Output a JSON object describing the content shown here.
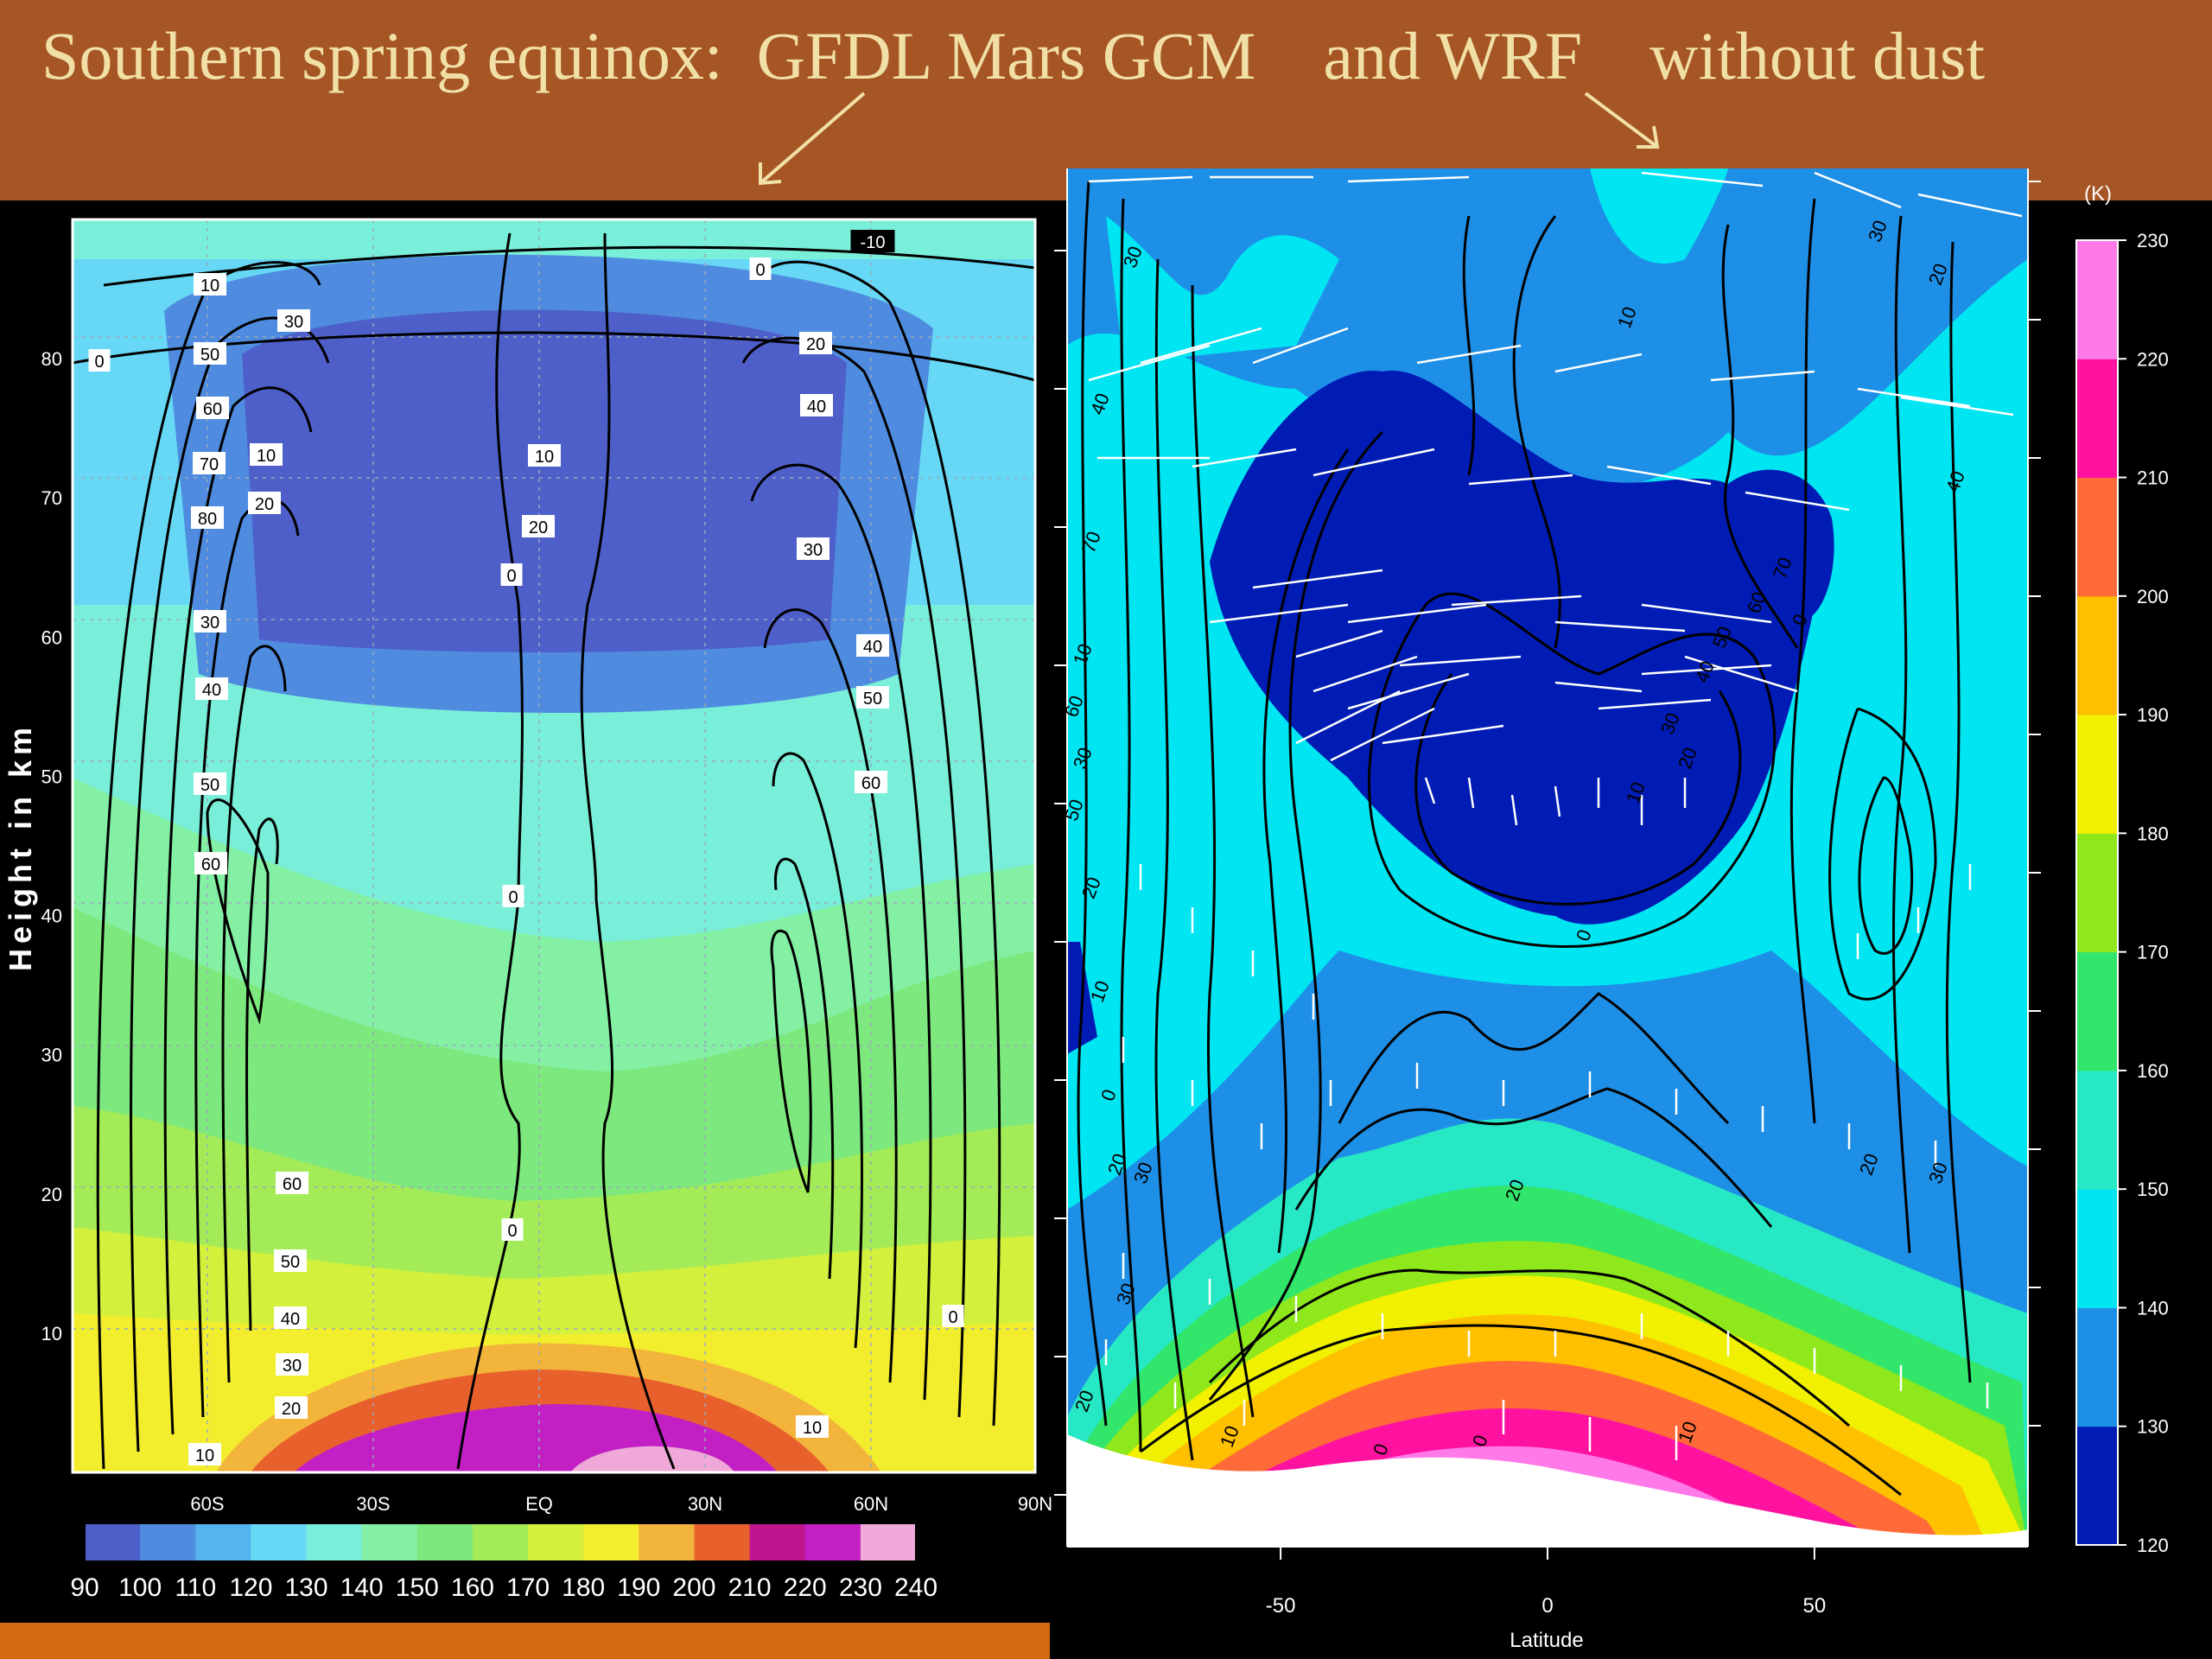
{
  "title": "Southern spring equinox:  GFDL Mars GCM    and WRF    without dust",
  "colors": {
    "banner": "#a65524",
    "title_text": "#f1e0a6",
    "arrow": "#f1e0a6",
    "bottom_bar": "#d46a10"
  },
  "chart_data": [
    {
      "type": "heatmap",
      "name": "GFDL Mars GCM",
      "ylabel": "Height in km",
      "xlabel": "",
      "x_ticks": [
        "60S",
        "30S",
        "EQ",
        "30N",
        "60N",
        "90N"
      ],
      "y_ticks": [
        "10",
        "20",
        "30",
        "40",
        "50",
        "60",
        "70",
        "80"
      ],
      "ylim": [
        0,
        90
      ],
      "grid": true,
      "colorbar": {
        "orientation": "horizontal",
        "position": "bottom",
        "levels": [
          90,
          100,
          110,
          120,
          130,
          140,
          150,
          160,
          170,
          180,
          190,
          200,
          210,
          220,
          230,
          240
        ],
        "labels": [
          "90",
          "100",
          "110",
          "120",
          "130",
          "140",
          "150",
          "160",
          "170",
          "180",
          "190",
          "200",
          "210",
          "220",
          "230",
          "240"
        ],
        "colors": [
          "#4e5fc9",
          "#4f8cdf",
          "#55b3ef",
          "#66d8f5",
          "#79eed9",
          "#83f0a4",
          "#7de87d",
          "#a3ec57",
          "#d2f03c",
          "#f2ee2e",
          "#f2b43a",
          "#e8602c",
          "#c0148f",
          "#c220c4",
          "#f0a8d8"
        ]
      },
      "contour_labels": [
        "-10",
        "0",
        "10",
        "20",
        "30",
        "40",
        "50",
        "60",
        "70",
        "80",
        "10",
        "20",
        "30",
        "40",
        "50",
        "60",
        "0",
        "0",
        "0",
        "0",
        "10",
        "20",
        "30",
        "40",
        "50",
        "60",
        "0",
        "10",
        "20",
        "30",
        "40",
        "50",
        "60",
        "10"
      ]
    },
    {
      "type": "heatmap",
      "name": "WRF",
      "xlabel": "Latitude",
      "ylabel": "",
      "x_ticks": [
        "-50",
        "0",
        "50"
      ],
      "colorbar": {
        "orientation": "vertical",
        "position": "right",
        "unit": "(K)",
        "levels": [
          120,
          130,
          140,
          150,
          160,
          170,
          180,
          190,
          200,
          210,
          220,
          230
        ],
        "labels": [
          "120",
          "130",
          "140",
          "150",
          "160",
          "170",
          "180",
          "190",
          "200",
          "210",
          "220",
          "230"
        ],
        "colors": [
          "#001cb4",
          "#1e8fe6",
          "#00e5f2",
          "#26e8c4",
          "#31e66a",
          "#8fe81c",
          "#f0f000",
          "#ffc000",
          "#ff6a38",
          "#ff12a0",
          "#ff7ae8"
        ]
      },
      "contour_labels": [
        "30",
        "20",
        "10",
        "0",
        "20",
        "30",
        "10",
        "0",
        "30",
        "40",
        "50",
        "60",
        "70",
        "0",
        "10",
        "20",
        "30",
        "40",
        "50",
        "60",
        "70",
        "0",
        "10",
        "20",
        "30",
        "20",
        "10",
        "0",
        "20",
        "30",
        "40",
        "30",
        "20",
        "10"
      ]
    }
  ]
}
